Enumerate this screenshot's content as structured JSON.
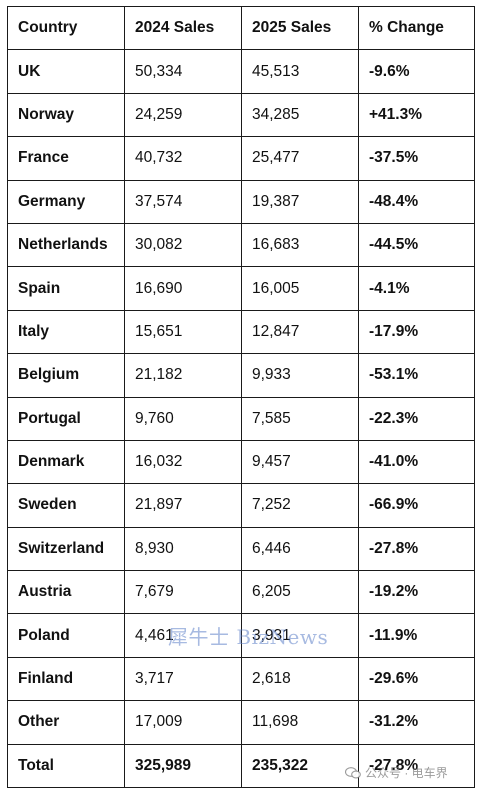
{
  "table": {
    "headers": [
      "Country",
      "2024 Sales",
      "2025 Sales",
      "% Change"
    ],
    "rows": [
      [
        "UK",
        "50,334",
        "45,513",
        "-9.6%"
      ],
      [
        "Norway",
        "24,259",
        "34,285",
        "+41.3%"
      ],
      [
        "France",
        "40,732",
        "25,477",
        "-37.5%"
      ],
      [
        "Germany",
        "37,574",
        "19,387",
        "-48.4%"
      ],
      [
        "Netherlands",
        "30,082",
        "16,683",
        "-44.5%"
      ],
      [
        "Spain",
        "16,690",
        "16,005",
        "-4.1%"
      ],
      [
        "Italy",
        "15,651",
        "12,847",
        "-17.9%"
      ],
      [
        "Belgium",
        "21,182",
        "9,933",
        "-53.1%"
      ],
      [
        "Portugal",
        "9,760",
        "7,585",
        "-22.3%"
      ],
      [
        "Denmark",
        "16,032",
        "9,457",
        "-41.0%"
      ],
      [
        "Sweden",
        "21,897",
        "7,252",
        "-66.9%"
      ],
      [
        "Switzerland",
        "8,930",
        "6,446",
        "-27.8%"
      ],
      [
        "Austria",
        "7,679",
        "6,205",
        "-19.2%"
      ],
      [
        "Poland",
        "4,461",
        "3,931",
        "-11.9%"
      ],
      [
        "Finland",
        "3,717",
        "2,618",
        "-29.6%"
      ],
      [
        "Other",
        "17,009",
        "11,698",
        "-31.2%"
      ]
    ],
    "total": [
      "Total",
      "325,989",
      "235,322",
      "-27.8%"
    ]
  },
  "watermarks": {
    "center_text": "犀牛士 BizNews",
    "corner_text": "公众号 · 电车界",
    "corner_icon": "wechat-logo-icon"
  }
}
